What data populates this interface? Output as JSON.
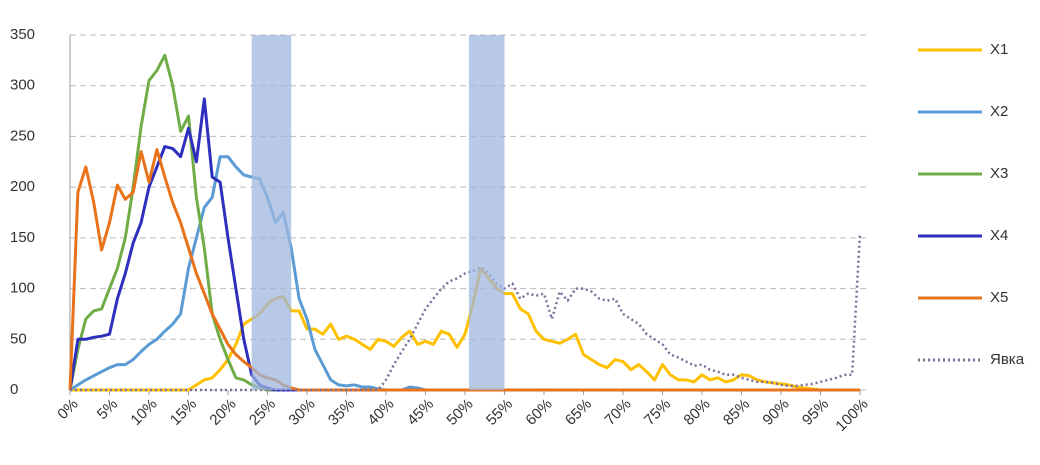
{
  "chart_data": {
    "type": "line",
    "x": [
      0,
      1,
      2,
      3,
      4,
      5,
      6,
      7,
      8,
      9,
      10,
      11,
      12,
      13,
      14,
      15,
      16,
      17,
      18,
      19,
      20,
      21,
      22,
      23,
      24,
      25,
      26,
      27,
      28,
      29,
      30,
      31,
      32,
      33,
      34,
      35,
      36,
      37,
      38,
      39,
      40,
      41,
      42,
      43,
      44,
      45,
      46,
      47,
      48,
      49,
      50,
      51,
      52,
      53,
      54,
      55,
      56,
      57,
      58,
      59,
      60,
      61,
      62,
      63,
      64,
      65,
      66,
      67,
      68,
      69,
      70,
      71,
      72,
      73,
      74,
      75,
      76,
      77,
      78,
      79,
      80,
      81,
      82,
      83,
      84,
      85,
      86,
      87,
      88,
      89,
      90,
      91,
      92,
      93,
      94,
      95,
      96,
      97,
      98,
      99,
      100
    ],
    "xlim": [
      0,
      100
    ],
    "xticks": [
      {
        "value": 0,
        "label": "0%"
      },
      {
        "value": 5,
        "label": "5%"
      },
      {
        "value": 10,
        "label": "10%"
      },
      {
        "value": 15,
        "label": "15%"
      },
      {
        "value": 20,
        "label": "20%"
      },
      {
        "value": 25,
        "label": "25%"
      },
      {
        "value": 30,
        "label": "30%"
      },
      {
        "value": 35,
        "label": "35%"
      },
      {
        "value": 40,
        "label": "40%"
      },
      {
        "value": 45,
        "label": "45%"
      },
      {
        "value": 50,
        "label": "50%"
      },
      {
        "value": 55,
        "label": "55%"
      },
      {
        "value": 60,
        "label": "60%"
      },
      {
        "value": 65,
        "label": "65%"
      },
      {
        "value": 70,
        "label": "70%"
      },
      {
        "value": 75,
        "label": "75%"
      },
      {
        "value": 80,
        "label": "80%"
      },
      {
        "value": 85,
        "label": "85%"
      },
      {
        "value": 90,
        "label": "90%"
      },
      {
        "value": 95,
        "label": "95%"
      },
      {
        "value": 100,
        "label": "100%"
      }
    ],
    "ylim": [
      0,
      350
    ],
    "yticks": [
      0,
      50,
      100,
      150,
      200,
      250,
      300,
      350
    ],
    "grid": true,
    "shaded_ranges": [
      [
        23,
        28
      ],
      [
        50.5,
        55
      ]
    ],
    "shade_color": "#9fb7de",
    "series": [
      {
        "name": "X1",
        "color": "#ffc000",
        "values": [
          0,
          0,
          0,
          0,
          0,
          0,
          0,
          0,
          0,
          0,
          0,
          0,
          0,
          0,
          0,
          0,
          5,
          10,
          12,
          20,
          30,
          45,
          65,
          70,
          75,
          85,
          90,
          92,
          78,
          78,
          60,
          60,
          55,
          65,
          50,
          53,
          50,
          45,
          40,
          50,
          48,
          43,
          52,
          58,
          45,
          48,
          45,
          58,
          55,
          42,
          55,
          85,
          120,
          110,
          100,
          95,
          95,
          80,
          75,
          58,
          50,
          48,
          46,
          50,
          55,
          35,
          30,
          25,
          22,
          30,
          28,
          20,
          25,
          18,
          10,
          25,
          15,
          10,
          10,
          8,
          15,
          10,
          12,
          8,
          10,
          15,
          14,
          10,
          8,
          7,
          6,
          5,
          3,
          2,
          1,
          0,
          0,
          0,
          0,
          0,
          0
        ]
      },
      {
        "name": "X2",
        "color": "#5b9bd5",
        "values": [
          0,
          5,
          10,
          14,
          18,
          22,
          25,
          25,
          30,
          38,
          45,
          50,
          58,
          65,
          75,
          120,
          150,
          180,
          190,
          230,
          230,
          220,
          212,
          210,
          208,
          190,
          165,
          175,
          140,
          90,
          70,
          40,
          25,
          10,
          5,
          4,
          5,
          3,
          3,
          1,
          0,
          0,
          0,
          3,
          2,
          0,
          0,
          0,
          0,
          0,
          0,
          0,
          0,
          0,
          0,
          0,
          0,
          0,
          0,
          0,
          0,
          0,
          0,
          0,
          0,
          0,
          0,
          0,
          0,
          0,
          0,
          0,
          0,
          0,
          0,
          0,
          0,
          0,
          0,
          0,
          0,
          0,
          0,
          0,
          0,
          0,
          0,
          0,
          0,
          0,
          0,
          0,
          0,
          0,
          0,
          0,
          0,
          0,
          0,
          0,
          0
        ]
      },
      {
        "name": "X3",
        "color": "#70ad47",
        "values": [
          0,
          40,
          70,
          78,
          80,
          100,
          120,
          150,
          200,
          260,
          305,
          315,
          330,
          300,
          255,
          270,
          190,
          140,
          75,
          50,
          30,
          12,
          10,
          5,
          2,
          0,
          0,
          0,
          0,
          0,
          0,
          0,
          0,
          0,
          0,
          0,
          0,
          0,
          0,
          0,
          0,
          0,
          0,
          0,
          0,
          0,
          0,
          0,
          0,
          0,
          0,
          0,
          0,
          0,
          0,
          0,
          0,
          0,
          0,
          0,
          0,
          0,
          0,
          0,
          0,
          0,
          0,
          0,
          0,
          0,
          0,
          0,
          0,
          0,
          0,
          0,
          0,
          0,
          0,
          0,
          0,
          0,
          0,
          0,
          0,
          0,
          0,
          0,
          0,
          0,
          0,
          0,
          0,
          0,
          0,
          0,
          0,
          0,
          0,
          0,
          0
        ]
      },
      {
        "name": "X4",
        "color": "#2e2ebf",
        "values": [
          0,
          50,
          50,
          52,
          53,
          55,
          90,
          115,
          145,
          165,
          200,
          220,
          240,
          238,
          230,
          258,
          225,
          287,
          210,
          205,
          150,
          100,
          50,
          15,
          5,
          2,
          0,
          0,
          0,
          0,
          0,
          0,
          0,
          0,
          0,
          0,
          0,
          0,
          0,
          0,
          0,
          0,
          0,
          0,
          0,
          0,
          0,
          0,
          0,
          0,
          0,
          0,
          0,
          0,
          0,
          0,
          0,
          0,
          0,
          0,
          0,
          0,
          0,
          0,
          0,
          0,
          0,
          0,
          0,
          0,
          0,
          0,
          0,
          0,
          0,
          0,
          0,
          0,
          0,
          0,
          0,
          0,
          0,
          0,
          0,
          0,
          0,
          0,
          0,
          0,
          0,
          0,
          0,
          0,
          0,
          0,
          0,
          0,
          0,
          0,
          0
        ]
      },
      {
        "name": "X5",
        "color": "#e8731a",
        "values": [
          0,
          195,
          220,
          185,
          138,
          165,
          202,
          188,
          195,
          235,
          205,
          237,
          210,
          185,
          165,
          140,
          115,
          95,
          75,
          60,
          45,
          35,
          28,
          22,
          15,
          12,
          10,
          5,
          2,
          0,
          0,
          0,
          0,
          0,
          0,
          0,
          0,
          0,
          0,
          0,
          0,
          0,
          0,
          0,
          0,
          0,
          0,
          0,
          0,
          0,
          0,
          0,
          0,
          0,
          0,
          0,
          0,
          0,
          0,
          0,
          0,
          0,
          0,
          0,
          0,
          0,
          0,
          0,
          0,
          0,
          0,
          0,
          0,
          0,
          0,
          0,
          0,
          0,
          0,
          0,
          0,
          0,
          0,
          0,
          0,
          0,
          0,
          0,
          0,
          0,
          0,
          0,
          0,
          0,
          0,
          0,
          0,
          0,
          0,
          0,
          0
        ]
      },
      {
        "name": "Явка",
        "color": "#7b6f9a",
        "dash": "dot",
        "values": [
          0,
          0,
          0,
          0,
          0,
          0,
          0,
          0,
          0,
          0,
          0,
          0,
          0,
          0,
          0,
          0,
          0,
          0,
          0,
          0,
          0,
          0,
          0,
          0,
          0,
          0,
          0,
          0,
          0,
          0,
          0,
          0,
          0,
          0,
          0,
          0,
          0,
          0,
          0,
          0,
          10,
          25,
          38,
          50,
          65,
          80,
          90,
          100,
          107,
          110,
          115,
          117,
          121,
          115,
          105,
          100,
          105,
          90,
          95,
          93,
          95,
          70,
          97,
          88,
          100,
          100,
          97,
          90,
          88,
          90,
          75,
          70,
          65,
          55,
          50,
          45,
          35,
          32,
          28,
          24,
          25,
          20,
          18,
          15,
          15,
          12,
          10,
          8,
          8,
          7,
          5,
          4,
          4,
          5,
          6,
          8,
          10,
          12,
          15,
          15,
          155
        ]
      }
    ]
  }
}
